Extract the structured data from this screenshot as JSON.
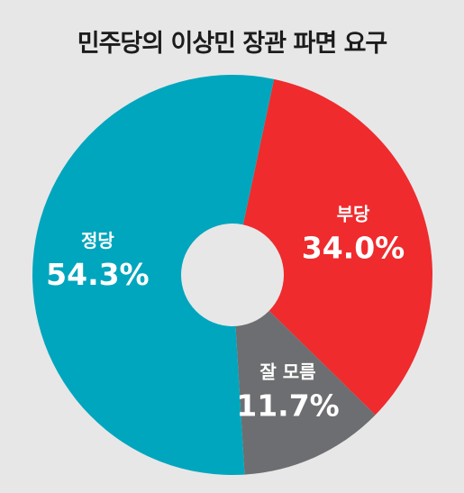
{
  "chart_data": {
    "type": "pie",
    "title": "민주당의 이상민 장관 파면 요구",
    "slices": [
      {
        "label": "부당",
        "value": 34.0,
        "display": "34.0%",
        "color": "#ef2b2d"
      },
      {
        "label": "잘 모름",
        "value": 11.7,
        "display": "11.7%",
        "color": "#6d6e71"
      },
      {
        "label": "정당",
        "value": 54.3,
        "display": "54.3%",
        "color": "#00a6bd"
      }
    ],
    "start_angle_deg": 12,
    "donut_hole": true
  },
  "colors": {
    "background": "#e7e7e8",
    "title_text": "#1c1c1c",
    "label_text": "#ffffff"
  }
}
